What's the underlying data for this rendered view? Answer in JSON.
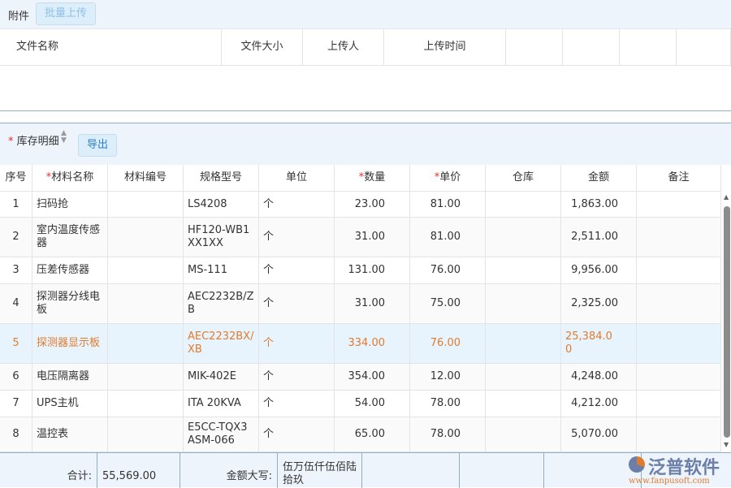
{
  "attachments": {
    "title": "附件",
    "upload_button": "批量上传",
    "columns": [
      "文件名称",
      "文件大小",
      "上传人",
      "上传时间",
      "",
      "",
      "",
      ""
    ]
  },
  "inventory": {
    "title": "库存明细",
    "export_button": "导出",
    "columns": [
      {
        "label": "序号",
        "required": false
      },
      {
        "label": "材料名称",
        "required": true
      },
      {
        "label": "材料编号",
        "required": false
      },
      {
        "label": "规格型号",
        "required": false
      },
      {
        "label": "单位",
        "required": false
      },
      {
        "label": "数量",
        "required": true
      },
      {
        "label": "单价",
        "required": true
      },
      {
        "label": "仓库",
        "required": false
      },
      {
        "label": "金额",
        "required": false
      },
      {
        "label": "备注",
        "required": false
      }
    ],
    "rows": [
      [
        "1",
        "扫码抢",
        "",
        "LS4208",
        "个",
        "23.00",
        "81.00",
        "",
        "1,863.00",
        ""
      ],
      [
        "2",
        "室内温度传感器",
        "",
        "HF120-WB1XX1XX",
        "个",
        "31.00",
        "81.00",
        "",
        "2,511.00",
        ""
      ],
      [
        "3",
        "压差传感器",
        "",
        "MS-111",
        "个",
        "131.00",
        "76.00",
        "",
        "9,956.00",
        ""
      ],
      [
        "4",
        "探测器分线电板",
        "",
        "AEC2232B/ZB",
        "个",
        "31.00",
        "75.00",
        "",
        "2,325.00",
        ""
      ],
      [
        "5",
        "探测器显示板",
        "",
        "AEC2232BX/XB",
        "个",
        "334.00",
        "76.00",
        "",
        "25,384.00",
        ""
      ],
      [
        "6",
        "电压隔离器",
        "",
        "MIK-402E",
        "个",
        "354.00",
        "12.00",
        "",
        "4,248.00",
        ""
      ],
      [
        "7",
        "UPS主机",
        "",
        "ITA 20KVA",
        "个",
        "54.00",
        "78.00",
        "",
        "4,212.00",
        ""
      ],
      [
        "8",
        "温控表",
        "",
        "E5CC-TQX3ASM-066",
        "个",
        "65.00",
        "78.00",
        "",
        "5,070.00",
        ""
      ]
    ],
    "selected_row": 4,
    "footer": {
      "total_label": "合计:",
      "total_value": "55,569.00",
      "caps_label": "金额大写:",
      "caps_value": "伍万伍仟伍佰陆拾玖"
    }
  },
  "watermark": {
    "brand": "泛普软件",
    "url": "www.fanpusoft.com"
  },
  "colors": {
    "accent": "#2a7fc9",
    "highlight_text": "#e07b2e",
    "required": "#e0302e"
  }
}
